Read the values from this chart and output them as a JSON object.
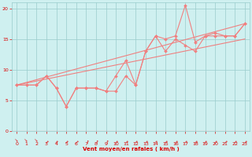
{
  "xlabel": "Vent moyen/en rafales ( km/h )",
  "bg_color": "#cff0f0",
  "line_color": "#f08080",
  "grid_color": "#99cccc",
  "axis_color": "#99cccc",
  "label_color": "#dd0000",
  "xlim": [
    -0.5,
    23.5
  ],
  "ylim": [
    0,
    21
  ],
  "yticks": [
    0,
    5,
    10,
    15,
    20
  ],
  "xticks": [
    0,
    1,
    2,
    3,
    4,
    5,
    6,
    7,
    8,
    9,
    10,
    11,
    12,
    13,
    14,
    15,
    16,
    17,
    18,
    19,
    20,
    21,
    22,
    23
  ],
  "x": [
    0,
    1,
    2,
    3,
    4,
    5,
    6,
    7,
    8,
    9,
    10,
    11,
    12,
    13,
    14,
    15,
    16,
    17,
    18,
    19,
    20,
    21,
    22,
    23
  ],
  "y_mean": [
    7.5,
    7.5,
    7.5,
    9.0,
    7.0,
    4.0,
    7.0,
    7.0,
    7.0,
    6.5,
    6.5,
    9.0,
    7.5,
    13.0,
    15.5,
    13.0,
    15.0,
    14.0,
    13.0,
    15.5,
    15.5,
    15.5,
    15.5,
    17.5
  ],
  "y_gust": [
    7.5,
    7.5,
    7.5,
    9.0,
    7.0,
    4.0,
    7.0,
    7.0,
    7.0,
    6.5,
    9.0,
    11.5,
    7.5,
    13.0,
    15.5,
    15.0,
    15.5,
    20.5,
    14.5,
    15.5,
    16.0,
    15.5,
    15.5,
    17.5
  ],
  "trend1_x": [
    0,
    23
  ],
  "trend1_y": [
    7.5,
    15.0
  ],
  "trend2_x": [
    0,
    23
  ],
  "trend2_y": [
    7.5,
    17.5
  ],
  "wind_dirs_deg": [
    45,
    45,
    45,
    135,
    135,
    135,
    135,
    180,
    180,
    180,
    135,
    135,
    135,
    135,
    135,
    135,
    135,
    135,
    135,
    135,
    135,
    135,
    135,
    135
  ]
}
